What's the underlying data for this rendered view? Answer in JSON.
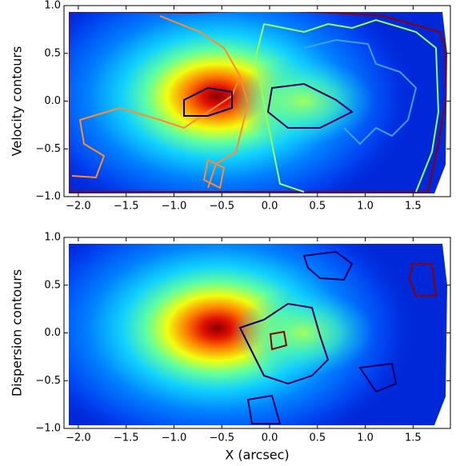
{
  "chart_data": [
    {
      "type": "heatmap",
      "ylabel": "Velocity contours",
      "xlim": [
        -2.15,
        1.89
      ],
      "ylim": [
        -1,
        1
      ],
      "xticks": [
        {
          "value": -2,
          "label": "−2.0"
        },
        {
          "value": -1.5,
          "label": "−1.5"
        },
        {
          "value": -1,
          "label": "−1.0"
        },
        {
          "value": -0.5,
          "label": "−0.5"
        },
        {
          "value": 0,
          "label": "0.0"
        },
        0.5,
        {
          "value": 1,
          "label": "1.0"
        },
        1.5
      ],
      "yticks": [
        {
          "value": -1,
          "label": "−1.0"
        },
        {
          "value": -0.5,
          "label": "−0.5"
        },
        {
          "value": 0,
          "label": "0.0"
        },
        0.5,
        {
          "value": 1,
          "label": "1.0"
        }
      ]
    },
    {
      "type": "heatmap",
      "ylabel": "Dispersion contours",
      "xlabel": "X (arcsec)",
      "xlim": [
        -2.15,
        1.89
      ],
      "ylim": [
        -1,
        1
      ],
      "xticks": [
        {
          "value": -2,
          "label": "−2.0"
        },
        {
          "value": -1.5,
          "label": "−1.5"
        },
        {
          "value": -1,
          "label": "−1.0"
        },
        {
          "value": -0.5,
          "label": "−0.5"
        },
        {
          "value": 0,
          "label": "0.0"
        },
        0.5,
        {
          "value": 1,
          "label": "1.0"
        },
        1.5
      ],
      "yticks": [
        {
          "value": -1,
          "label": "−1.0"
        },
        {
          "value": -0.5,
          "label": "−0.5"
        },
        {
          "value": 0,
          "label": "0.0"
        },
        0.5,
        {
          "value": 1,
          "label": "1.0"
        }
      ]
    }
  ]
}
